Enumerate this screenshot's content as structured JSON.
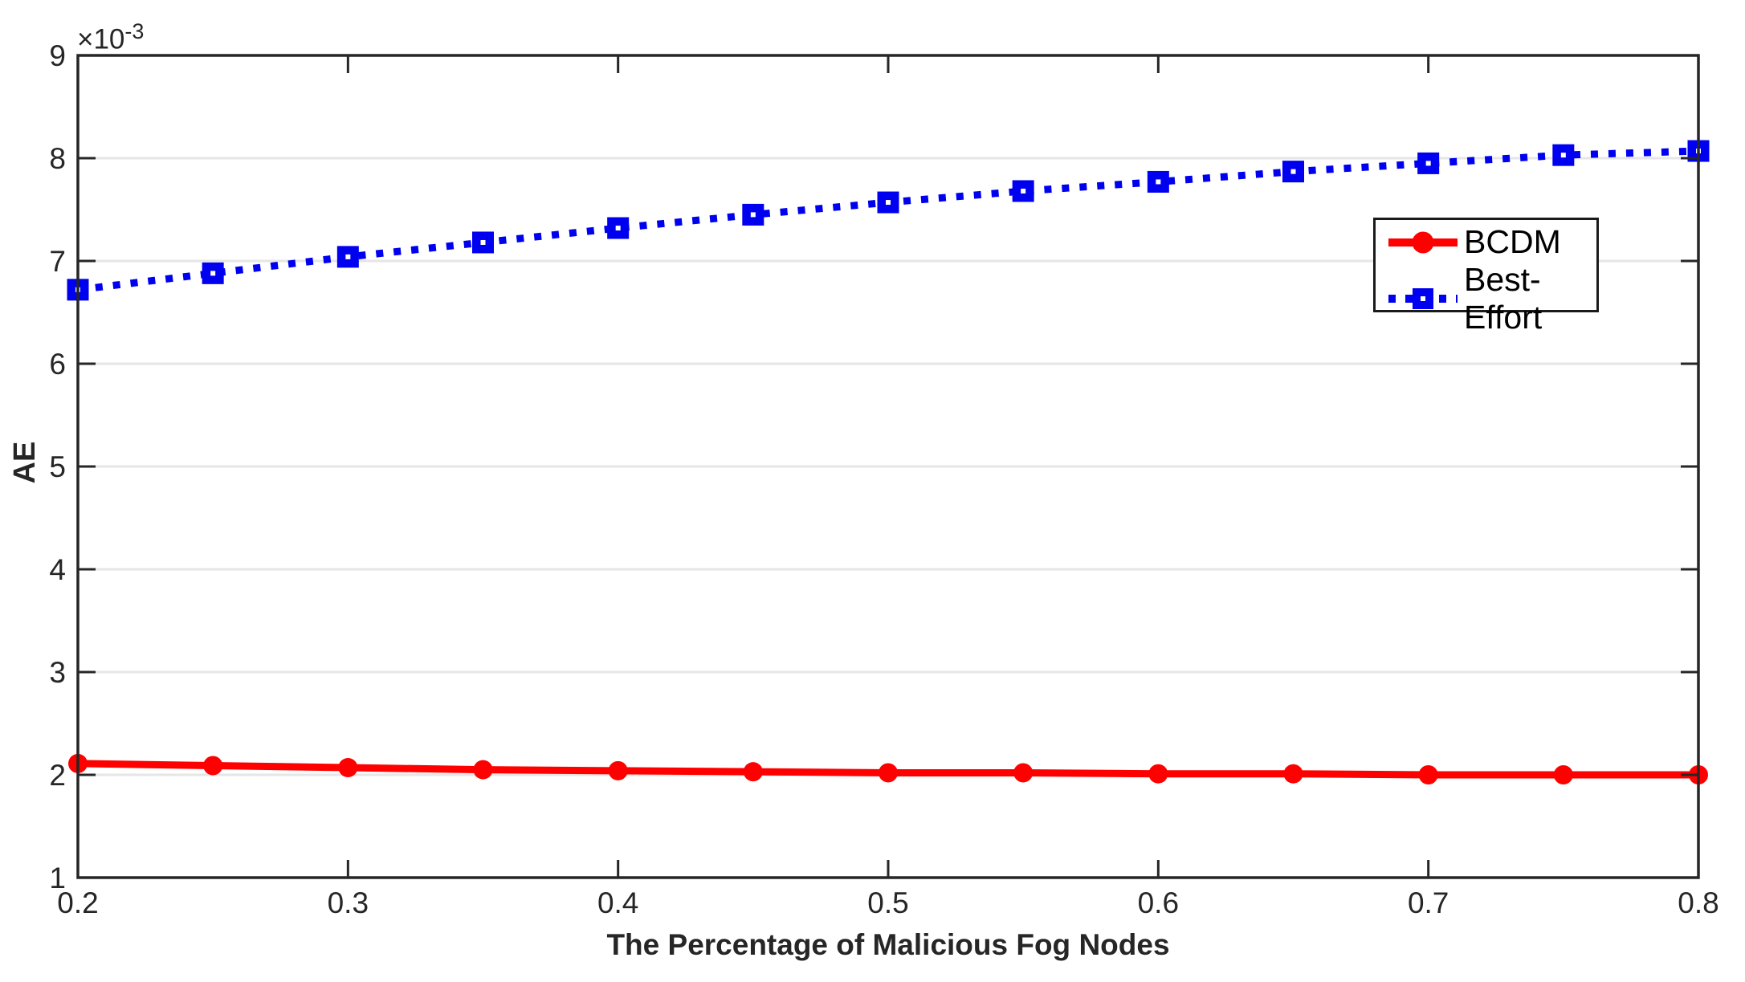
{
  "figure": {
    "background": "#FFFFFF",
    "axis_color": "#262626",
    "grid_color": "#E6E6E6",
    "legend_border_color": "#1A1A1A"
  },
  "chart_data": {
    "type": "line",
    "title": "",
    "xlabel": "The Percentage of Malicious Fog Nodes",
    "ylabel": "AE",
    "y_multiplier": {
      "base": "×10",
      "exp": "-3",
      "factor": 0.001
    },
    "xlim": [
      0.2,
      0.8
    ],
    "ylim": [
      1,
      9
    ],
    "xticks": [
      0.2,
      0.3,
      0.4,
      0.5,
      0.6,
      0.7,
      0.8
    ],
    "xtick_labels": [
      "0.2",
      "0.3",
      "0.4",
      "0.5",
      "0.6",
      "0.7",
      "0.8"
    ],
    "yticks": [
      1,
      2,
      3,
      4,
      5,
      6,
      7,
      8,
      9
    ],
    "ytick_labels": [
      "1",
      "2",
      "3",
      "4",
      "5",
      "6",
      "7",
      "8",
      "9"
    ],
    "grid": "horizontal-only",
    "legend_position": "upper-right",
    "x": [
      0.2,
      0.25,
      0.3,
      0.35,
      0.4,
      0.45,
      0.5,
      0.55,
      0.6,
      0.65,
      0.7,
      0.75,
      0.8
    ],
    "series": [
      {
        "key": "bcdm",
        "name": "BCDM",
        "color": "#FF0000",
        "line_style": "solid",
        "marker": "circle",
        "values": [
          2.11,
          2.09,
          2.07,
          2.05,
          2.04,
          2.03,
          2.02,
          2.02,
          2.01,
          2.01,
          2.0,
          2.0,
          2.0
        ]
      },
      {
        "key": "best-effort",
        "name": "Best-Effort",
        "color": "#0000F0",
        "line_style": "dotted",
        "marker": "square",
        "values": [
          6.72,
          6.88,
          7.04,
          7.18,
          7.32,
          7.45,
          7.57,
          7.68,
          7.77,
          7.87,
          7.95,
          8.03,
          8.07
        ]
      }
    ]
  }
}
